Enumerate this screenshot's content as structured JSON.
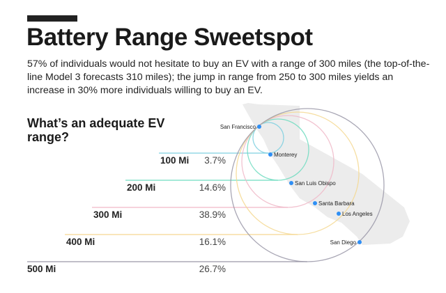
{
  "title": "Battery Range Sweetspot",
  "subtitle": "57% of individuals would not hesitate to buy an EV with a range of 300 miles (the top-of-the-line Model 3 forecasts 310 miles); the jump in range from 250 to 300 miles yields an increase in 30% more individuals willing to buy an EV.",
  "question": "What’s an adequate EV range?",
  "chart_data": {
    "type": "bar",
    "title": "What’s an adequate EV range?",
    "categories": [
      "100 Mi",
      "200 Mi",
      "300 Mi",
      "400 Mi",
      "500 Mi"
    ],
    "values": [
      3.7,
      14.6,
      38.9,
      16.1,
      26.7
    ],
    "value_labels": [
      "3.7%",
      "14.6%",
      "38.9%",
      "16.1%",
      "26.7%"
    ],
    "range_miles": [
      100,
      200,
      300,
      400,
      500
    ],
    "colors": [
      "#7fd0e0",
      "#6fdcc0",
      "#f0b8c8",
      "#f5d890",
      "#9a98a8"
    ]
  },
  "cities": [
    "San Francisco",
    "Monterey",
    "San Luis Obispo",
    "Santa Barbara",
    "Los Angeles",
    "San Diego"
  ],
  "city_color": "#2f8ff5"
}
